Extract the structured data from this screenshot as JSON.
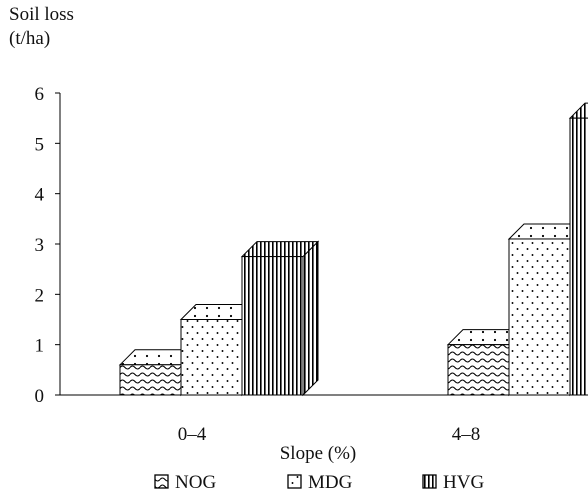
{
  "chart_data": {
    "type": "bar",
    "style": "3d-clustered",
    "ylabel_lines": [
      "Soil loss",
      "(t/ha)"
    ],
    "xlabel": "Slope (%)",
    "ylim": [
      0,
      6
    ],
    "yticks": [
      0,
      1,
      2,
      3,
      4,
      5,
      6
    ],
    "categories": [
      "0–4",
      "4–8"
    ],
    "series": [
      {
        "name": "NOG",
        "values": [
          0.6,
          1.0
        ],
        "pattern": "wave"
      },
      {
        "name": "MDG",
        "values": [
          1.5,
          3.1
        ],
        "pattern": "dots"
      },
      {
        "name": "HVG",
        "values": [
          2.75,
          5.5
        ],
        "pattern": "vertical-lines"
      }
    ],
    "legend_position": "bottom",
    "grid": false
  }
}
